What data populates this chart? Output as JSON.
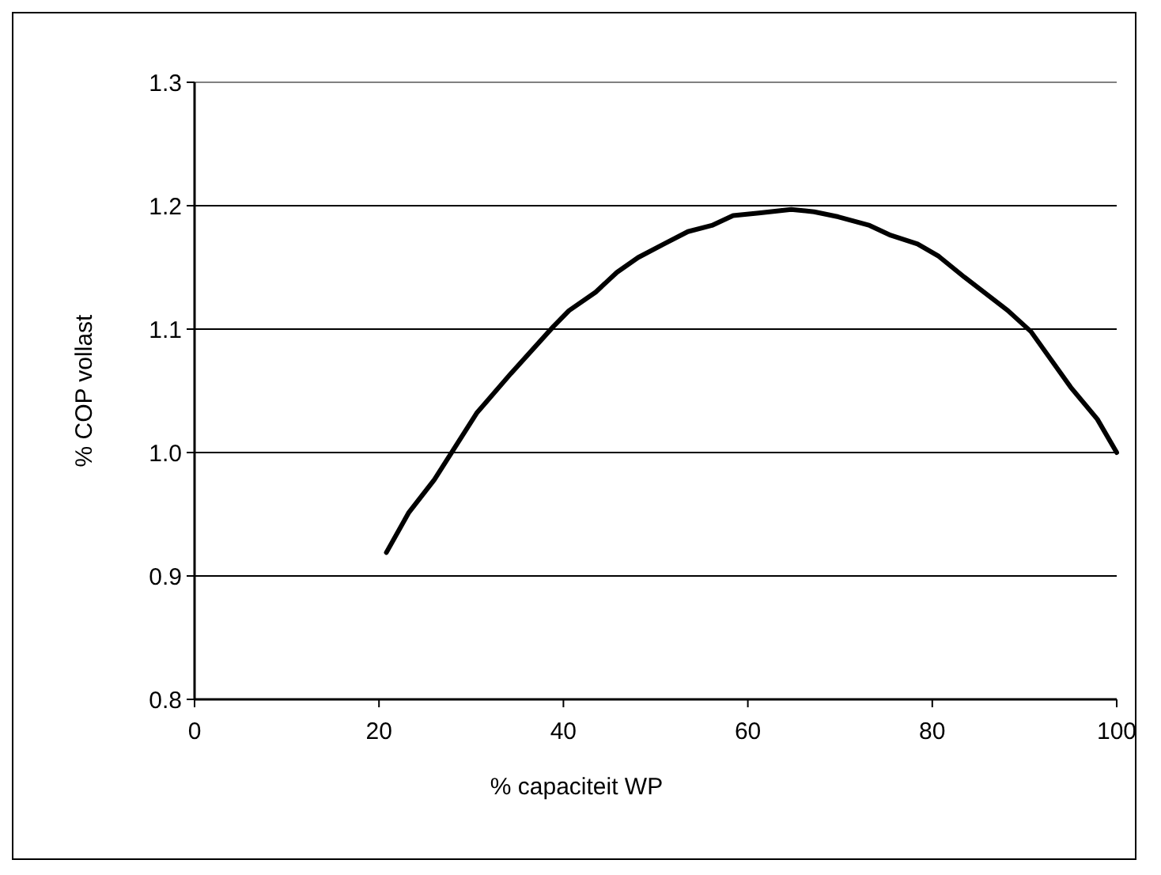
{
  "chart_data": {
    "type": "line",
    "xlabel": "% capaciteit WP",
    "ylabel": "% COP vollast",
    "xlim": [
      0,
      100
    ],
    "xticks": [
      0,
      20,
      40,
      60,
      80,
      100
    ],
    "ylim": [
      0.8,
      1.3
    ],
    "yticks": [
      0.8,
      0.9,
      {
        "value": 1,
        "label": "1.0"
      },
      1.1,
      1.2,
      1.3
    ],
    "grid": "y",
    "marker": "none",
    "line_style": "solid",
    "series": [
      {
        "color": "#000000",
        "x": [
          20.8,
          23.2,
          26.0,
          30.6,
          34.3,
          38.9,
          40.6,
          43.5,
          45.8,
          48.1,
          50.9,
          53.5,
          56.1,
          58.4,
          61.2,
          64.7,
          67.2,
          69.8,
          73.2,
          75.5,
          78.4,
          80.7,
          83.5,
          88.2,
          90.7,
          95.0,
          97.9,
          100
        ],
        "values": [
          0.919,
          0.951,
          0.978,
          1.032,
          1.064,
          1.102,
          1.115,
          1.13,
          1.146,
          1.158,
          1.169,
          1.179,
          1.184,
          1.192,
          1.194,
          1.197,
          1.195,
          1.191,
          1.184,
          1.176,
          1.169,
          1.159,
          1.142,
          1.115,
          1.098,
          1.053,
          1.027,
          1.0
        ]
      }
    ]
  }
}
